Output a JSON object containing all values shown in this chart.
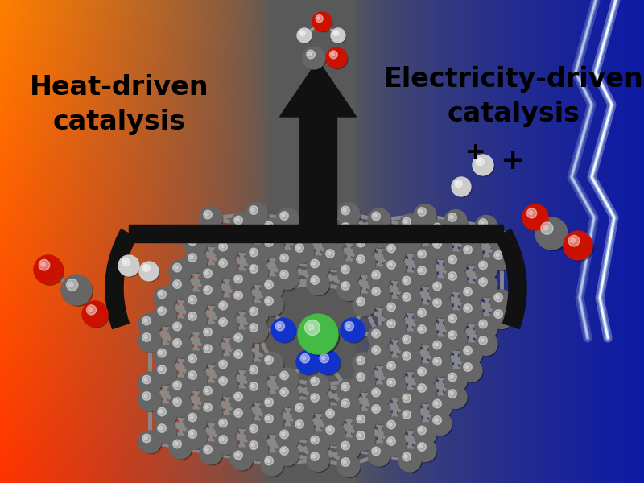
{
  "text_left": "Heat-driven\ncatalysis",
  "text_right": "Electricity-driven\ncatalysis",
  "text_fontsize": 24,
  "arrow_color": "#111111",
  "carbon_color": "#666666",
  "nitrogen_color": "#1133cc",
  "nickel_color": "#44bb44",
  "red_atom_color": "#cc1100",
  "white_atom_color": "#cccccc",
  "figsize": [
    8.0,
    6.0
  ],
  "dpi": 100
}
